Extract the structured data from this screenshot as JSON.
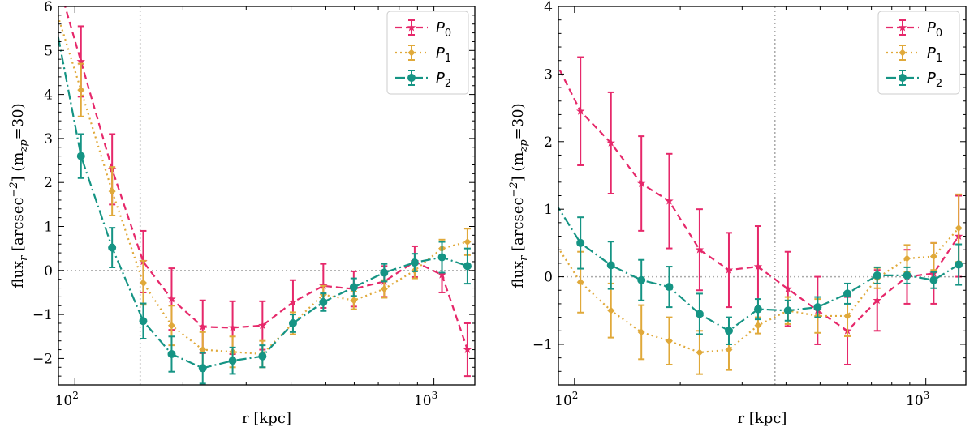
{
  "colors": {
    "P0": "#e6286a",
    "P1": "#e0a93a",
    "P2": "#159484",
    "ref": "#aaaaaa"
  },
  "chart_data": [
    {
      "type": "line",
      "xscale": "log",
      "xlim": [
        90,
        1300
      ],
      "ylim": [
        -2.6,
        6
      ],
      "xlabel": "r [kpc]",
      "ylabel": "flux_r [arcsec^-2] (m_zp=30)",
      "ylabel_parts": {
        "main": "flux",
        "sub1": "r",
        "mid": " [arcsec",
        "sup": "−2",
        "mid2": "] (m",
        "sub2": "zp",
        "end": "=30)"
      },
      "xticks": [
        {
          "value": 100,
          "base": "10",
          "exp": "2"
        },
        {
          "value": 1000,
          "base": "10",
          "exp": "3"
        }
      ],
      "yticks": [
        {
          "value": -2,
          "label": "−2"
        },
        {
          "value": -1,
          "label": "−1"
        },
        {
          "value": 0,
          "label": "0"
        },
        {
          "value": 1,
          "label": "1"
        },
        {
          "value": 2,
          "label": "2"
        },
        {
          "value": 3,
          "label": "3"
        },
        {
          "value": 4,
          "label": "4"
        },
        {
          "value": 5,
          "label": "5"
        },
        {
          "value": 6,
          "label": "6"
        }
      ],
      "vline": 152,
      "hline": 0,
      "legend_position": "top-right",
      "series": [
        {
          "name_base": "P",
          "name_sub": "0",
          "color_key": "P0",
          "dash": "8,5",
          "marker": "star",
          "points": [
            {
              "x": 88,
              "y": 6.8,
              "e": 0
            },
            {
              "x": 104,
              "y": 4.75,
              "e": 0.8
            },
            {
              "x": 127,
              "y": 2.3,
              "e": 0.8
            },
            {
              "x": 155,
              "y": 0.2,
              "e": 0.7
            },
            {
              "x": 186,
              "y": -0.65,
              "e": 0.7
            },
            {
              "x": 227,
              "y": -1.28,
              "e": 0.6
            },
            {
              "x": 275,
              "y": -1.3,
              "e": 0.6
            },
            {
              "x": 333,
              "y": -1.25,
              "e": 0.55
            },
            {
              "x": 405,
              "y": -0.72,
              "e": 0.5
            },
            {
              "x": 492,
              "y": -0.35,
              "e": 0.5
            },
            {
              "x": 598,
              "y": -0.42,
              "e": 0.4
            },
            {
              "x": 727,
              "y": -0.25,
              "e": 0.35
            },
            {
              "x": 884,
              "y": 0.2,
              "e": 0.35
            },
            {
              "x": 1053,
              "y": -0.1,
              "e": 0.4
            },
            {
              "x": 1240,
              "y": -1.8,
              "e": 0.6
            }
          ]
        },
        {
          "name_base": "P",
          "name_sub": "1",
          "color_key": "P1",
          "dash": "2,4",
          "marker": "diamond",
          "points": [
            {
              "x": 88,
              "y": 6.0,
              "e": 0
            },
            {
              "x": 104,
              "y": 4.1,
              "e": 0.6
            },
            {
              "x": 127,
              "y": 1.8,
              "e": 0.55
            },
            {
              "x": 155,
              "y": -0.28,
              "e": 0.5
            },
            {
              "x": 186,
              "y": -1.25,
              "e": 0.45
            },
            {
              "x": 227,
              "y": -1.8,
              "e": 0.4
            },
            {
              "x": 275,
              "y": -1.85,
              "e": 0.35
            },
            {
              "x": 333,
              "y": -1.9,
              "e": 0.3
            },
            {
              "x": 405,
              "y": -1.2,
              "e": 0.25
            },
            {
              "x": 492,
              "y": -0.55,
              "e": 0.2
            },
            {
              "x": 598,
              "y": -0.68,
              "e": 0.2
            },
            {
              "x": 727,
              "y": -0.42,
              "e": 0.2
            },
            {
              "x": 884,
              "y": 0.0,
              "e": 0.18
            },
            {
              "x": 1053,
              "y": 0.5,
              "e": 0.2
            },
            {
              "x": 1240,
              "y": 0.65,
              "e": 0.3
            }
          ]
        },
        {
          "name_base": "P",
          "name_sub": "2",
          "color_key": "P2",
          "dash": "12,4,2,4",
          "marker": "circle",
          "points": [
            {
              "x": 88,
              "y": 5.7,
              "e": 0
            },
            {
              "x": 104,
              "y": 2.6,
              "e": 0.5
            },
            {
              "x": 127,
              "y": 0.52,
              "e": 0.45
            },
            {
              "x": 155,
              "y": -1.15,
              "e": 0.4
            },
            {
              "x": 186,
              "y": -1.9,
              "e": 0.4
            },
            {
              "x": 227,
              "y": -2.22,
              "e": 0.35
            },
            {
              "x": 275,
              "y": -2.05,
              "e": 0.3
            },
            {
              "x": 333,
              "y": -1.95,
              "e": 0.25
            },
            {
              "x": 405,
              "y": -1.2,
              "e": 0.2
            },
            {
              "x": 492,
              "y": -0.72,
              "e": 0.2
            },
            {
              "x": 598,
              "y": -0.38,
              "e": 0.2
            },
            {
              "x": 727,
              "y": -0.05,
              "e": 0.2
            },
            {
              "x": 884,
              "y": 0.18,
              "e": 0.2
            },
            {
              "x": 1053,
              "y": 0.3,
              "e": 0.35
            },
            {
              "x": 1240,
              "y": 0.1,
              "e": 0.4
            }
          ]
        }
      ]
    },
    {
      "type": "line",
      "xscale": "log",
      "xlim": [
        90,
        1300
      ],
      "ylim": [
        -1.6,
        4
      ],
      "xlabel": "r [kpc]",
      "ylabel": "flux_r [arcsec^-2] (m_zp=30)",
      "ylabel_parts": {
        "main": "flux",
        "sub1": "r",
        "mid": " [arcsec",
        "sup": "−2",
        "mid2": "] (m",
        "sub2": "zp",
        "end": "=30)"
      },
      "xticks": [
        {
          "value": 100,
          "base": "10",
          "exp": "2"
        },
        {
          "value": 1000,
          "base": "10",
          "exp": "3"
        }
      ],
      "yticks": [
        {
          "value": -1,
          "label": "−1"
        },
        {
          "value": 0,
          "label": "0"
        },
        {
          "value": 1,
          "label": "1"
        },
        {
          "value": 2,
          "label": "2"
        },
        {
          "value": 3,
          "label": "3"
        },
        {
          "value": 4,
          "label": "4"
        }
      ],
      "vline": 372,
      "hline": 0,
      "legend_position": "top-right",
      "series": [
        {
          "name_base": "P",
          "name_sub": "0",
          "color_key": "P0",
          "dash": "8,5",
          "marker": "star",
          "points": [
            {
              "x": 88,
              "y": 3.2,
              "e": 0
            },
            {
              "x": 104,
              "y": 2.45,
              "e": 0.8
            },
            {
              "x": 127,
              "y": 1.98,
              "e": 0.75
            },
            {
              "x": 155,
              "y": 1.38,
              "e": 0.7
            },
            {
              "x": 186,
              "y": 1.12,
              "e": 0.7
            },
            {
              "x": 227,
              "y": 0.4,
              "e": 0.6
            },
            {
              "x": 275,
              "y": 0.1,
              "e": 0.55
            },
            {
              "x": 333,
              "y": 0.15,
              "e": 0.6
            },
            {
              "x": 405,
              "y": -0.18,
              "e": 0.55
            },
            {
              "x": 492,
              "y": -0.5,
              "e": 0.5
            },
            {
              "x": 598,
              "y": -0.8,
              "e": 0.5
            },
            {
              "x": 727,
              "y": -0.35,
              "e": 0.45
            },
            {
              "x": 884,
              "y": 0.0,
              "e": 0.4
            },
            {
              "x": 1053,
              "y": 0.05,
              "e": 0.45
            },
            {
              "x": 1240,
              "y": 0.6,
              "e": 0.6
            }
          ]
        },
        {
          "name_base": "P",
          "name_sub": "1",
          "color_key": "P1",
          "dash": "2,4",
          "marker": "diamond",
          "points": [
            {
              "x": 88,
              "y": 0.5,
              "e": 0
            },
            {
              "x": 104,
              "y": -0.08,
              "e": 0.45
            },
            {
              "x": 127,
              "y": -0.5,
              "e": 0.4
            },
            {
              "x": 155,
              "y": -0.82,
              "e": 0.4
            },
            {
              "x": 186,
              "y": -0.95,
              "e": 0.35
            },
            {
              "x": 227,
              "y": -1.12,
              "e": 0.32
            },
            {
              "x": 275,
              "y": -1.08,
              "e": 0.3
            },
            {
              "x": 333,
              "y": -0.72,
              "e": 0.12
            },
            {
              "x": 405,
              "y": -0.5,
              "e": 0.2
            },
            {
              "x": 492,
              "y": -0.58,
              "e": 0.25
            },
            {
              "x": 598,
              "y": -0.58,
              "e": 0.3
            },
            {
              "x": 727,
              "y": -0.02,
              "e": 0.15
            },
            {
              "x": 884,
              "y": 0.27,
              "e": 0.2
            },
            {
              "x": 1053,
              "y": 0.3,
              "e": 0.2
            },
            {
              "x": 1240,
              "y": 0.72,
              "e": 0.5
            }
          ]
        },
        {
          "name_base": "P",
          "name_sub": "2",
          "color_key": "P2",
          "dash": "12,4,2,4",
          "marker": "circle",
          "points": [
            {
              "x": 88,
              "y": 1.1,
              "e": 0
            },
            {
              "x": 104,
              "y": 0.5,
              "e": 0.38
            },
            {
              "x": 127,
              "y": 0.17,
              "e": 0.35
            },
            {
              "x": 155,
              "y": -0.05,
              "e": 0.3
            },
            {
              "x": 186,
              "y": -0.15,
              "e": 0.3
            },
            {
              "x": 227,
              "y": -0.55,
              "e": 0.3
            },
            {
              "x": 275,
              "y": -0.8,
              "e": 0.2
            },
            {
              "x": 333,
              "y": -0.48,
              "e": 0.15
            },
            {
              "x": 405,
              "y": -0.5,
              "e": 0.15
            },
            {
              "x": 492,
              "y": -0.45,
              "e": 0.15
            },
            {
              "x": 598,
              "y": -0.25,
              "e": 0.15
            },
            {
              "x": 727,
              "y": 0.02,
              "e": 0.12
            },
            {
              "x": 884,
              "y": 0.02,
              "e": 0.12
            },
            {
              "x": 1053,
              "y": -0.05,
              "e": 0.12
            },
            {
              "x": 1240,
              "y": 0.18,
              "e": 0.3
            }
          ]
        }
      ]
    }
  ]
}
